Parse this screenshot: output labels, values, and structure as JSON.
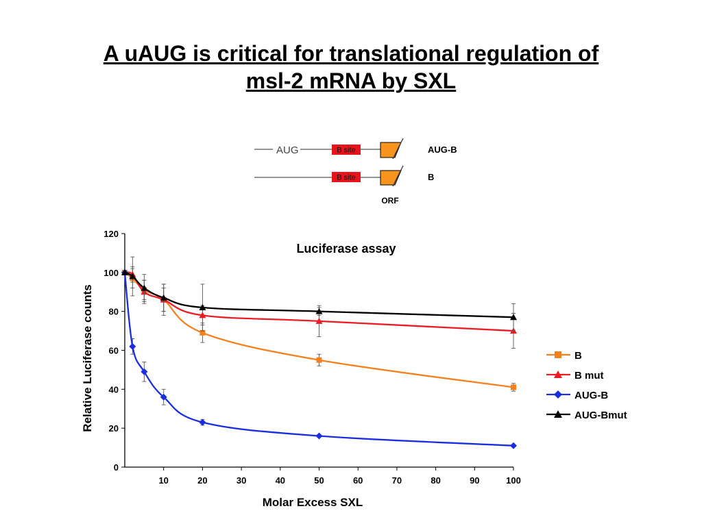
{
  "slide": {
    "title_line1": "A uAUG is critical for translational regulation of",
    "title_line2": "msl-2 mRNA by SXL"
  },
  "diagram": {
    "rows": [
      {
        "upstream_label": "AUG",
        "box_label": "B site",
        "construct_label": "AUG-B"
      },
      {
        "upstream_label": "",
        "box_label": "B site",
        "construct_label": "B"
      }
    ],
    "orf_label": "ORF",
    "colors": {
      "b_site": "#e8141b",
      "orf": "#f7941d"
    }
  },
  "chart_data": {
    "type": "line",
    "title": "Luciferase assay",
    "xlabel": "Molar Excess SXL",
    "ylabel": "Relative Luciferase counts",
    "xlim": [
      0,
      100
    ],
    "ylim": [
      0,
      120
    ],
    "xticks": [
      10,
      20,
      30,
      40,
      50,
      60,
      70,
      80,
      90,
      100
    ],
    "yticks": [
      0,
      20,
      40,
      60,
      80,
      100,
      120
    ],
    "x": [
      0,
      2,
      5,
      10,
      20,
      50,
      100
    ],
    "grid": false,
    "legend_position": "right",
    "series": [
      {
        "name": "B",
        "color": "#f7801e",
        "marker": "square",
        "values": [
          100,
          97,
          91,
          86,
          69,
          55,
          41
        ],
        "errors": [
          0,
          5,
          5,
          6,
          5,
          3,
          2
        ]
      },
      {
        "name": "B mut",
        "color": "#ed1c24",
        "marker": "triangle",
        "values": [
          100,
          99,
          90,
          86,
          78,
          75,
          70
        ],
        "errors": [
          0,
          4,
          6,
          8,
          5,
          8,
          9
        ]
      },
      {
        "name": "AUG-B",
        "color": "#1a2ee0",
        "marker": "diamond",
        "values": [
          100,
          62,
          49,
          36,
          23,
          16,
          11
        ],
        "errors": [
          0,
          4,
          5,
          4,
          1.5,
          0,
          0
        ]
      },
      {
        "name": "AUG-Bmut",
        "color": "#000000",
        "marker": "triangle",
        "values": [
          100,
          98,
          92,
          87,
          82,
          80,
          77
        ],
        "errors": [
          0,
          10,
          7,
          7,
          12,
          2,
          7
        ]
      }
    ]
  }
}
